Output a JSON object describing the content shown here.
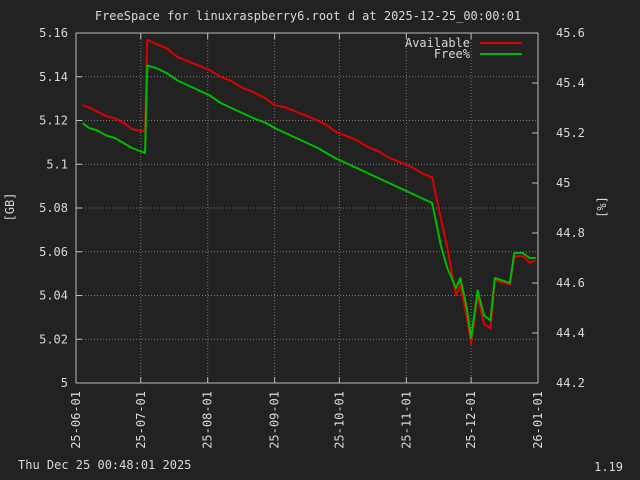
{
  "footer": {
    "timestamp": "Thu Dec 25 00:48:01 2025",
    "version": "1.19"
  },
  "chart_data": {
    "type": "line",
    "title": "FreeSpace for linuxraspberry6.root d at 2025-12-25_00:00:01",
    "xlabel": "",
    "ylabel": "[GB]",
    "y2label": "[%]",
    "x_axis": {
      "type": "date",
      "ticks": [
        "2025-06-01",
        "2025-07-01",
        "2025-08-01",
        "2025-09-01",
        "2025-10-01",
        "2025-11-01",
        "2025-12-01",
        "2026-01-01"
      ],
      "tick_labels": [
        "25-06-01",
        "25-07-01",
        "25-08-01",
        "25-09-01",
        "25-10-01",
        "25-11-01",
        "25-12-01",
        "26-01-01"
      ]
    },
    "ylim": [
      5.0,
      5.16
    ],
    "y_ticks": [
      5,
      5.02,
      5.04,
      5.06,
      5.08,
      5.1,
      5.12,
      5.14,
      5.16
    ],
    "y_tick_labels": [
      "5",
      "5.02",
      "5.04",
      "5.06",
      "5.08",
      "5.1",
      "5.12",
      "5.14",
      "5.16"
    ],
    "y2lim": [
      44.2,
      45.6
    ],
    "y2_ticks": [
      44.2,
      44.4,
      44.6,
      44.8,
      45,
      45.2,
      45.4,
      45.6
    ],
    "y2_tick_labels": [
      "44.2",
      "44.4",
      "44.6",
      "44.8",
      "45",
      "45.2",
      "45.4",
      "45.6"
    ],
    "grid": true,
    "legend_position": "top-right",
    "colors": {
      "available": "#dd0000",
      "free": "#00bb00",
      "grid": "#777777",
      "axis": "#bbbbbb",
      "text": "#d8d8d8"
    },
    "series": [
      {
        "name": "Available",
        "axis": "y",
        "color": "#dd0000",
        "points": [
          [
            "2025-06-04",
            5.127
          ],
          [
            "2025-06-07",
            5.126
          ],
          [
            "2025-06-11",
            5.124
          ],
          [
            "2025-06-15",
            5.122
          ],
          [
            "2025-06-19",
            5.121
          ],
          [
            "2025-06-23",
            5.119
          ],
          [
            "2025-06-27",
            5.116
          ],
          [
            "2025-07-03",
            5.115
          ],
          [
            "2025-07-04",
            5.157
          ],
          [
            "2025-07-08",
            5.155
          ],
          [
            "2025-07-13",
            5.153
          ],
          [
            "2025-07-18",
            5.149
          ],
          [
            "2025-07-23",
            5.147
          ],
          [
            "2025-07-28",
            5.145
          ],
          [
            "2025-08-02",
            5.143
          ],
          [
            "2025-08-07",
            5.14
          ],
          [
            "2025-08-12",
            5.138
          ],
          [
            "2025-08-17",
            5.135
          ],
          [
            "2025-08-22",
            5.133
          ],
          [
            "2025-08-28",
            5.13
          ],
          [
            "2025-09-01",
            5.127
          ],
          [
            "2025-09-06",
            5.126
          ],
          [
            "2025-09-11",
            5.124
          ],
          [
            "2025-09-16",
            5.122
          ],
          [
            "2025-09-21",
            5.12
          ],
          [
            "2025-09-25",
            5.118
          ],
          [
            "2025-09-29",
            5.115
          ],
          [
            "2025-10-04",
            5.113
          ],
          [
            "2025-10-09",
            5.111
          ],
          [
            "2025-10-14",
            5.108
          ],
          [
            "2025-10-19",
            5.106
          ],
          [
            "2025-10-24",
            5.103
          ],
          [
            "2025-10-29",
            5.101
          ],
          [
            "2025-11-03",
            5.099
          ],
          [
            "2025-11-08",
            5.096
          ],
          [
            "2025-11-13",
            5.094
          ],
          [
            "2025-11-17",
            5.075
          ],
          [
            "2025-11-20",
            5.062
          ],
          [
            "2025-11-24",
            5.04
          ],
          [
            "2025-11-26",
            5.045
          ],
          [
            "2025-11-29",
            5.03
          ],
          [
            "2025-12-01",
            5.018
          ],
          [
            "2025-12-04",
            5.04
          ],
          [
            "2025-12-07",
            5.027
          ],
          [
            "2025-12-10",
            5.025
          ],
          [
            "2025-12-12",
            5.047
          ],
          [
            "2025-12-19",
            5.045
          ],
          [
            "2025-12-21",
            5.058
          ],
          [
            "2025-12-25",
            5.058
          ],
          [
            "2025-12-28",
            5.055
          ],
          [
            "2025-12-31",
            5.056
          ]
        ]
      },
      {
        "name": "Free%",
        "axis": "y2",
        "color": "#00bb00",
        "points": [
          [
            "2025-06-04",
            45.24
          ],
          [
            "2025-06-07",
            45.22
          ],
          [
            "2025-06-11",
            45.21
          ],
          [
            "2025-06-15",
            45.19
          ],
          [
            "2025-06-19",
            45.18
          ],
          [
            "2025-06-23",
            45.16
          ],
          [
            "2025-06-27",
            45.14
          ],
          [
            "2025-07-03",
            45.12
          ],
          [
            "2025-07-04",
            45.47
          ],
          [
            "2025-07-08",
            45.46
          ],
          [
            "2025-07-13",
            45.44
          ],
          [
            "2025-07-18",
            45.41
          ],
          [
            "2025-07-23",
            45.39
          ],
          [
            "2025-07-28",
            45.37
          ],
          [
            "2025-08-02",
            45.35
          ],
          [
            "2025-08-07",
            45.32
          ],
          [
            "2025-08-12",
            45.3
          ],
          [
            "2025-08-17",
            45.28
          ],
          [
            "2025-08-22",
            45.26
          ],
          [
            "2025-08-28",
            45.24
          ],
          [
            "2025-09-01",
            45.22
          ],
          [
            "2025-09-06",
            45.2
          ],
          [
            "2025-09-11",
            45.18
          ],
          [
            "2025-09-16",
            45.16
          ],
          [
            "2025-09-21",
            45.14
          ],
          [
            "2025-09-25",
            45.12
          ],
          [
            "2025-09-29",
            45.1
          ],
          [
            "2025-10-04",
            45.08
          ],
          [
            "2025-10-09",
            45.06
          ],
          [
            "2025-10-14",
            45.04
          ],
          [
            "2025-10-19",
            45.02
          ],
          [
            "2025-10-24",
            45.0
          ],
          [
            "2025-10-29",
            44.98
          ],
          [
            "2025-11-03",
            44.96
          ],
          [
            "2025-11-08",
            44.94
          ],
          [
            "2025-11-13",
            44.92
          ],
          [
            "2025-11-17",
            44.75
          ],
          [
            "2025-11-20",
            44.66
          ],
          [
            "2025-11-24",
            44.58
          ],
          [
            "2025-11-26",
            44.62
          ],
          [
            "2025-11-29",
            44.5
          ],
          [
            "2025-12-01",
            44.38
          ],
          [
            "2025-12-04",
            44.57
          ],
          [
            "2025-12-07",
            44.47
          ],
          [
            "2025-12-10",
            44.45
          ],
          [
            "2025-12-12",
            44.62
          ],
          [
            "2025-12-19",
            44.6
          ],
          [
            "2025-12-21",
            44.72
          ],
          [
            "2025-12-25",
            44.72
          ],
          [
            "2025-12-28",
            44.7
          ],
          [
            "2025-12-31",
            44.7
          ]
        ]
      }
    ]
  }
}
